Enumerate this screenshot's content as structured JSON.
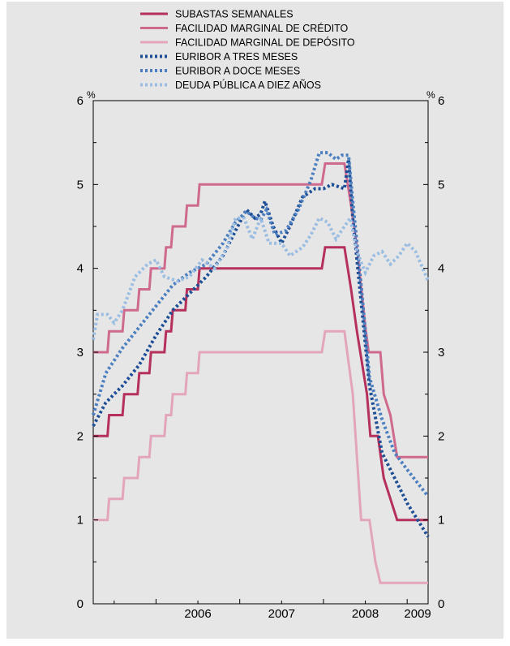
{
  "chart_data": {
    "type": "line",
    "ylim": [
      0,
      6
    ],
    "y_ticks": [
      "0",
      "1",
      "2",
      "3",
      "4",
      "5",
      "6"
    ],
    "y_unit_left": "%",
    "y_unit_right": "%",
    "x_range": [
      2005.25,
      2009.25
    ],
    "x_ticks": [
      "2006",
      "2007",
      "2008",
      "2009"
    ],
    "grid": false,
    "legend_position": "top",
    "series": [
      {
        "name": "SUBASTAS SEMANALES",
        "color": "#b5305a",
        "style": "solid",
        "points": [
          [
            2005.25,
            2.0
          ],
          [
            2005.42,
            2.0
          ],
          [
            2005.44,
            2.25
          ],
          [
            2005.6,
            2.25
          ],
          [
            2005.62,
            2.5
          ],
          [
            2005.78,
            2.5
          ],
          [
            2005.8,
            2.75
          ],
          [
            2005.92,
            2.75
          ],
          [
            2005.94,
            3.0
          ],
          [
            2006.1,
            3.0
          ],
          [
            2006.12,
            3.25
          ],
          [
            2006.18,
            3.25
          ],
          [
            2006.2,
            3.5
          ],
          [
            2006.35,
            3.5
          ],
          [
            2006.37,
            3.75
          ],
          [
            2006.5,
            3.75
          ],
          [
            2006.52,
            4.0
          ],
          [
            2007.98,
            4.0
          ],
          [
            2008.02,
            4.25
          ],
          [
            2008.25,
            4.25
          ],
          [
            2008.33,
            3.75
          ],
          [
            2008.4,
            3.25
          ],
          [
            2008.52,
            2.5
          ],
          [
            2008.56,
            2.0
          ],
          [
            2008.65,
            2.0
          ],
          [
            2008.72,
            1.5
          ],
          [
            2008.88,
            1.0
          ],
          [
            2009.25,
            1.0
          ]
        ]
      },
      {
        "name": "FACILIDAD MARGINAL DE CRÉDITO",
        "color": "#cf6a8f",
        "style": "solid",
        "points": [
          [
            2005.25,
            3.0
          ],
          [
            2005.42,
            3.0
          ],
          [
            2005.44,
            3.25
          ],
          [
            2005.6,
            3.25
          ],
          [
            2005.62,
            3.5
          ],
          [
            2005.78,
            3.5
          ],
          [
            2005.8,
            3.75
          ],
          [
            2005.92,
            3.75
          ],
          [
            2005.94,
            4.0
          ],
          [
            2006.1,
            4.0
          ],
          [
            2006.12,
            4.25
          ],
          [
            2006.18,
            4.25
          ],
          [
            2006.2,
            4.5
          ],
          [
            2006.35,
            4.5
          ],
          [
            2006.37,
            4.75
          ],
          [
            2006.5,
            4.75
          ],
          [
            2006.52,
            5.0
          ],
          [
            2007.98,
            5.0
          ],
          [
            2008.02,
            5.25
          ],
          [
            2008.25,
            5.25
          ],
          [
            2008.33,
            4.75
          ],
          [
            2008.4,
            4.25
          ],
          [
            2008.5,
            3.3
          ],
          [
            2008.54,
            3.0
          ],
          [
            2008.68,
            3.0
          ],
          [
            2008.72,
            2.5
          ],
          [
            2008.8,
            2.25
          ],
          [
            2008.88,
            1.75
          ],
          [
            2009.25,
            1.75
          ]
        ]
      },
      {
        "name": "FACILIDAD MARGINAL DE DEPÓSITO",
        "color": "#e3a5bc",
        "style": "solid",
        "points": [
          [
            2005.25,
            1.0
          ],
          [
            2005.42,
            1.0
          ],
          [
            2005.44,
            1.25
          ],
          [
            2005.6,
            1.25
          ],
          [
            2005.62,
            1.5
          ],
          [
            2005.78,
            1.5
          ],
          [
            2005.8,
            1.75
          ],
          [
            2005.92,
            1.75
          ],
          [
            2005.94,
            2.0
          ],
          [
            2006.1,
            2.0
          ],
          [
            2006.12,
            2.25
          ],
          [
            2006.18,
            2.25
          ],
          [
            2006.2,
            2.5
          ],
          [
            2006.35,
            2.5
          ],
          [
            2006.37,
            2.75
          ],
          [
            2006.5,
            2.75
          ],
          [
            2006.52,
            3.0
          ],
          [
            2007.98,
            3.0
          ],
          [
            2008.02,
            3.25
          ],
          [
            2008.25,
            3.25
          ],
          [
            2008.35,
            2.5
          ],
          [
            2008.45,
            1.0
          ],
          [
            2008.55,
            1.0
          ],
          [
            2008.62,
            0.5
          ],
          [
            2008.68,
            0.25
          ],
          [
            2009.25,
            0.25
          ]
        ]
      },
      {
        "name": "EURIBOR A TRES MESES",
        "color": "#1d4e96",
        "style": "dotted",
        "points": [
          [
            2005.25,
            2.12
          ],
          [
            2005.4,
            2.4
          ],
          [
            2005.6,
            2.6
          ],
          [
            2005.8,
            2.85
          ],
          [
            2006.0,
            3.2
          ],
          [
            2006.2,
            3.5
          ],
          [
            2006.4,
            3.7
          ],
          [
            2006.6,
            3.9
          ],
          [
            2006.8,
            4.15
          ],
          [
            2006.95,
            4.45
          ],
          [
            2007.08,
            4.7
          ],
          [
            2007.18,
            4.6
          ],
          [
            2007.25,
            4.65
          ],
          [
            2007.3,
            4.8
          ],
          [
            2007.4,
            4.5
          ],
          [
            2007.5,
            4.3
          ],
          [
            2007.6,
            4.5
          ],
          [
            2007.75,
            4.85
          ],
          [
            2007.9,
            4.95
          ],
          [
            2008.0,
            4.95
          ],
          [
            2008.1,
            5.0
          ],
          [
            2008.25,
            4.95
          ],
          [
            2008.3,
            5.3
          ],
          [
            2008.35,
            4.6
          ],
          [
            2008.45,
            3.6
          ],
          [
            2008.55,
            2.6
          ],
          [
            2008.7,
            1.8
          ],
          [
            2008.85,
            1.5
          ],
          [
            2009.0,
            1.2
          ],
          [
            2009.25,
            0.8
          ]
        ]
      },
      {
        "name": "EURIBOR A DOCE MESES",
        "color": "#4c7fc0",
        "style": "dotted",
        "points": [
          [
            2005.25,
            2.25
          ],
          [
            2005.4,
            2.75
          ],
          [
            2005.6,
            3.05
          ],
          [
            2005.8,
            3.3
          ],
          [
            2006.0,
            3.55
          ],
          [
            2006.2,
            3.8
          ],
          [
            2006.4,
            3.95
          ],
          [
            2006.6,
            4.05
          ],
          [
            2006.8,
            4.3
          ],
          [
            2006.95,
            4.55
          ],
          [
            2007.08,
            4.68
          ],
          [
            2007.18,
            4.6
          ],
          [
            2007.25,
            4.58
          ],
          [
            2007.32,
            4.7
          ],
          [
            2007.42,
            4.4
          ],
          [
            2007.55,
            4.45
          ],
          [
            2007.7,
            4.7
          ],
          [
            2007.85,
            5.05
          ],
          [
            2007.95,
            5.38
          ],
          [
            2008.05,
            5.38
          ],
          [
            2008.15,
            5.3
          ],
          [
            2008.22,
            5.35
          ],
          [
            2008.3,
            5.35
          ],
          [
            2008.35,
            4.8
          ],
          [
            2008.45,
            3.8
          ],
          [
            2008.55,
            2.7
          ],
          [
            2008.7,
            2.2
          ],
          [
            2008.85,
            1.8
          ],
          [
            2009.0,
            1.6
          ],
          [
            2009.25,
            1.28
          ]
        ]
      },
      {
        "name": "DEUDA PÚBLICA A DIEZ AÑOS",
        "color": "#9bbde2",
        "style": "dotted",
        "points": [
          [
            2005.25,
            3.15
          ],
          [
            2005.3,
            3.45
          ],
          [
            2005.42,
            3.45
          ],
          [
            2005.5,
            3.35
          ],
          [
            2005.6,
            3.5
          ],
          [
            2005.75,
            3.9
          ],
          [
            2005.9,
            4.05
          ],
          [
            2006.0,
            4.1
          ],
          [
            2006.1,
            3.9
          ],
          [
            2006.25,
            3.85
          ],
          [
            2006.4,
            3.9
          ],
          [
            2006.55,
            4.1
          ],
          [
            2006.7,
            4.0
          ],
          [
            2006.85,
            4.25
          ],
          [
            2006.95,
            4.6
          ],
          [
            2007.05,
            4.6
          ],
          [
            2007.15,
            4.35
          ],
          [
            2007.25,
            4.6
          ],
          [
            2007.35,
            4.3
          ],
          [
            2007.5,
            4.3
          ],
          [
            2007.6,
            4.15
          ],
          [
            2007.75,
            4.25
          ],
          [
            2007.85,
            4.4
          ],
          [
            2007.95,
            4.6
          ],
          [
            2008.05,
            4.55
          ],
          [
            2008.15,
            4.35
          ],
          [
            2008.25,
            4.5
          ],
          [
            2008.32,
            4.6
          ],
          [
            2008.4,
            4.2
          ],
          [
            2008.5,
            3.95
          ],
          [
            2008.6,
            4.15
          ],
          [
            2008.7,
            4.2
          ],
          [
            2008.8,
            4.05
          ],
          [
            2008.9,
            4.15
          ],
          [
            2009.0,
            4.3
          ],
          [
            2009.1,
            4.2
          ],
          [
            2009.25,
            3.85
          ]
        ]
      }
    ]
  }
}
